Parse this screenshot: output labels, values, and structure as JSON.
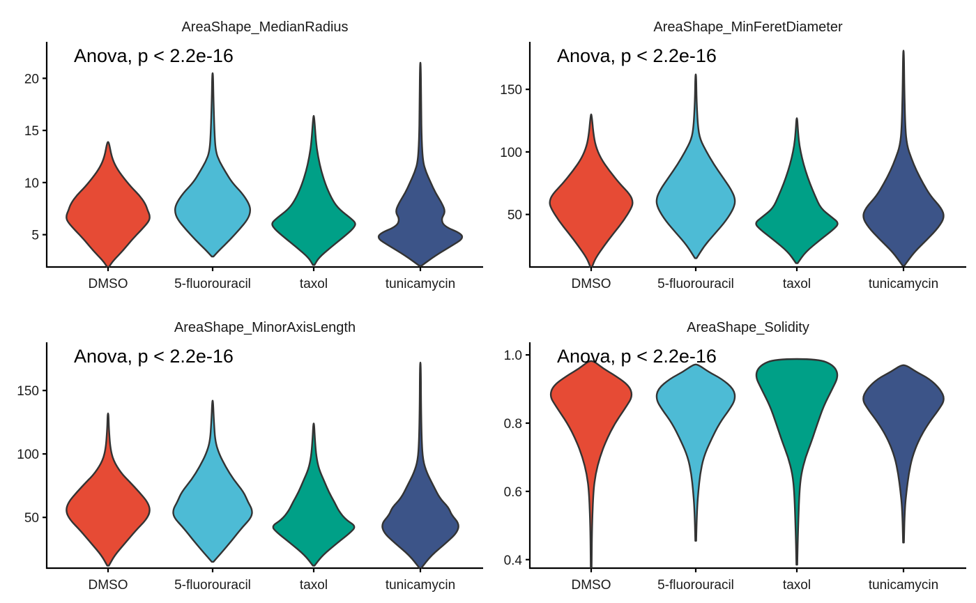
{
  "chart_data": [
    {
      "type": "violin",
      "title": "AreaShape_MedianRadius",
      "annotation": "Anova, p < 2.2e-16",
      "categories": [
        "DMSO",
        "5-fluorouracil",
        "taxol",
        "tunicamycin"
      ],
      "colors": [
        "#E64B35",
        "#4DBBD5",
        "#00A087",
        "#3C5488"
      ],
      "ylim": [
        1.9,
        23.5
      ],
      "yticks": [
        5,
        10,
        15,
        20
      ],
      "ytick_labels": [
        "5",
        "10",
        "15",
        "20"
      ],
      "series": [
        {
          "name": "DMSO",
          "min": 1.9,
          "max": 13.9,
          "profile": [
            [
              1.9,
              0.02
            ],
            [
              2.5,
              0.12
            ],
            [
              3.5,
              0.35
            ],
            [
              4.5,
              0.55
            ],
            [
              5.5,
              0.78
            ],
            [
              6.3,
              0.95
            ],
            [
              6.8,
              0.97
            ],
            [
              7.3,
              0.92
            ],
            [
              8,
              0.86
            ],
            [
              8.8,
              0.72
            ],
            [
              9.5,
              0.55
            ],
            [
              10.5,
              0.35
            ],
            [
              11.5,
              0.18
            ],
            [
              12.5,
              0.08
            ],
            [
              13.9,
              0.02
            ]
          ]
        },
        {
          "name": "5-fluorouracil",
          "min": 2.9,
          "max": 20.5,
          "profile": [
            [
              2.9,
              0.02
            ],
            [
              3.5,
              0.15
            ],
            [
              4.5,
              0.4
            ],
            [
              5.5,
              0.62
            ],
            [
              6.5,
              0.82
            ],
            [
              7.3,
              0.88
            ],
            [
              8,
              0.84
            ],
            [
              9,
              0.68
            ],
            [
              10,
              0.45
            ],
            [
              11,
              0.3
            ],
            [
              12,
              0.16
            ],
            [
              13,
              0.07
            ],
            [
              15,
              0.04
            ],
            [
              18,
              0.02
            ],
            [
              20.5,
              0.01
            ]
          ]
        },
        {
          "name": "taxol",
          "min": 2.1,
          "max": 16.4,
          "profile": [
            [
              2.1,
              0.02
            ],
            [
              2.8,
              0.12
            ],
            [
              3.8,
              0.4
            ],
            [
              4.8,
              0.7
            ],
            [
              5.6,
              0.92
            ],
            [
              6.1,
              0.98
            ],
            [
              6.6,
              0.85
            ],
            [
              7.4,
              0.6
            ],
            [
              8.2,
              0.45
            ],
            [
              9.5,
              0.3
            ],
            [
              11,
              0.18
            ],
            [
              12.5,
              0.1
            ],
            [
              14,
              0.05
            ],
            [
              16.4,
              0.01
            ]
          ]
        },
        {
          "name": "tunicamycin",
          "min": 2.0,
          "max": 21.5,
          "profile": [
            [
              2,
              0.02
            ],
            [
              3,
              0.35
            ],
            [
              4,
              0.75
            ],
            [
              4.6,
              0.98
            ],
            [
              5.1,
              0.95
            ],
            [
              5.8,
              0.55
            ],
            [
              6.5,
              0.48
            ],
            [
              7.2,
              0.58
            ],
            [
              8,
              0.5
            ],
            [
              9,
              0.35
            ],
            [
              10,
              0.24
            ],
            [
              11,
              0.13
            ],
            [
              12,
              0.06
            ],
            [
              14,
              0.03
            ],
            [
              17,
              0.02
            ],
            [
              21.5,
              0.01
            ]
          ]
        }
      ]
    },
    {
      "type": "violin",
      "title": "AreaShape_MinFeretDiameter",
      "annotation": "Anova, p < 2.2e-16",
      "categories": [
        "DMSO",
        "5-fluorouracil",
        "taxol",
        "tunicamycin"
      ],
      "colors": [
        "#E64B35",
        "#4DBBD5",
        "#00A087",
        "#3C5488"
      ],
      "ylim": [
        8,
        188
      ],
      "yticks": [
        50,
        100,
        150
      ],
      "ytick_labels": [
        "50",
        "100",
        "150"
      ],
      "series": [
        {
          "name": "DMSO",
          "min": 8,
          "max": 130,
          "profile": [
            [
              8,
              0.02
            ],
            [
              15,
              0.1
            ],
            [
              25,
              0.3
            ],
            [
              35,
              0.52
            ],
            [
              45,
              0.75
            ],
            [
              55,
              0.93
            ],
            [
              60,
              0.97
            ],
            [
              66,
              0.9
            ],
            [
              75,
              0.65
            ],
            [
              85,
              0.42
            ],
            [
              95,
              0.22
            ],
            [
              105,
              0.1
            ],
            [
              115,
              0.05
            ],
            [
              130,
              0.01
            ]
          ]
        },
        {
          "name": "5-fluorouracil",
          "min": 15,
          "max": 162,
          "profile": [
            [
              15,
              0.02
            ],
            [
              25,
              0.2
            ],
            [
              35,
              0.45
            ],
            [
              45,
              0.7
            ],
            [
              55,
              0.88
            ],
            [
              62,
              0.92
            ],
            [
              70,
              0.82
            ],
            [
              80,
              0.62
            ],
            [
              90,
              0.42
            ],
            [
              100,
              0.25
            ],
            [
              110,
              0.1
            ],
            [
              120,
              0.05
            ],
            [
              140,
              0.02
            ],
            [
              162,
              0.01
            ]
          ]
        },
        {
          "name": "taxol",
          "min": 11,
          "max": 127,
          "profile": [
            [
              11,
              0.02
            ],
            [
              20,
              0.2
            ],
            [
              30,
              0.55
            ],
            [
              38,
              0.85
            ],
            [
              43,
              0.98
            ],
            [
              48,
              0.8
            ],
            [
              55,
              0.55
            ],
            [
              65,
              0.42
            ],
            [
              75,
              0.3
            ],
            [
              85,
              0.2
            ],
            [
              95,
              0.12
            ],
            [
              105,
              0.06
            ],
            [
              115,
              0.03
            ],
            [
              127,
              0.01
            ]
          ]
        },
        {
          "name": "tunicamycin",
          "min": 9,
          "max": 181,
          "profile": [
            [
              9,
              0.02
            ],
            [
              20,
              0.25
            ],
            [
              30,
              0.55
            ],
            [
              40,
              0.82
            ],
            [
              48,
              0.95
            ],
            [
              55,
              0.88
            ],
            [
              65,
              0.62
            ],
            [
              75,
              0.45
            ],
            [
              85,
              0.3
            ],
            [
              95,
              0.18
            ],
            [
              105,
              0.08
            ],
            [
              120,
              0.04
            ],
            [
              150,
              0.02
            ],
            [
              181,
              0.01
            ]
          ]
        }
      ]
    },
    {
      "type": "violin",
      "title": "AreaShape_MinorAxisLength",
      "annotation": "Anova, p < 2.2e-16",
      "categories": [
        "DMSO",
        "5-fluorouracil",
        "taxol",
        "tunicamycin"
      ],
      "colors": [
        "#E64B35",
        "#4DBBD5",
        "#00A087",
        "#3C5488"
      ],
      "ylim": [
        10,
        188
      ],
      "yticks": [
        50,
        100,
        150
      ],
      "ytick_labels": [
        "50",
        "100",
        "150"
      ],
      "series": [
        {
          "name": "DMSO",
          "min": 12,
          "max": 132,
          "profile": [
            [
              12,
              0.02
            ],
            [
              20,
              0.15
            ],
            [
              30,
              0.4
            ],
            [
              40,
              0.65
            ],
            [
              48,
              0.88
            ],
            [
              55,
              0.98
            ],
            [
              62,
              0.92
            ],
            [
              70,
              0.72
            ],
            [
              78,
              0.5
            ],
            [
              85,
              0.3
            ],
            [
              95,
              0.12
            ],
            [
              105,
              0.05
            ],
            [
              120,
              0.02
            ],
            [
              132,
              0.01
            ]
          ]
        },
        {
          "name": "5-fluorouracil",
          "min": 15,
          "max": 142,
          "profile": [
            [
              15,
              0.02
            ],
            [
              22,
              0.2
            ],
            [
              32,
              0.45
            ],
            [
              42,
              0.68
            ],
            [
              50,
              0.9
            ],
            [
              56,
              0.92
            ],
            [
              62,
              0.82
            ],
            [
              70,
              0.72
            ],
            [
              80,
              0.48
            ],
            [
              90,
              0.3
            ],
            [
              100,
              0.15
            ],
            [
              110,
              0.06
            ],
            [
              125,
              0.03
            ],
            [
              142,
              0.01
            ]
          ]
        },
        {
          "name": "taxol",
          "min": 12,
          "max": 124,
          "profile": [
            [
              12,
              0.02
            ],
            [
              20,
              0.2
            ],
            [
              30,
              0.55
            ],
            [
              38,
              0.85
            ],
            [
              43,
              0.98
            ],
            [
              48,
              0.75
            ],
            [
              55,
              0.58
            ],
            [
              62,
              0.48
            ],
            [
              70,
              0.35
            ],
            [
              78,
              0.25
            ],
            [
              88,
              0.12
            ],
            [
              98,
              0.06
            ],
            [
              110,
              0.03
            ],
            [
              124,
              0.01
            ]
          ]
        },
        {
          "name": "tunicamycin",
          "min": 10,
          "max": 172,
          "profile": [
            [
              10,
              0.02
            ],
            [
              20,
              0.25
            ],
            [
              30,
              0.6
            ],
            [
              38,
              0.85
            ],
            [
              45,
              0.9
            ],
            [
              52,
              0.72
            ],
            [
              58,
              0.65
            ],
            [
              65,
              0.45
            ],
            [
              75,
              0.3
            ],
            [
              85,
              0.15
            ],
            [
              95,
              0.06
            ],
            [
              110,
              0.03
            ],
            [
              140,
              0.015
            ],
            [
              172,
              0.01
            ]
          ]
        }
      ]
    },
    {
      "type": "violin",
      "title": "AreaShape_Solidity",
      "annotation": "Anova, p < 2.2e-16",
      "categories": [
        "DMSO",
        "5-fluorouracil",
        "taxol",
        "tunicamycin"
      ],
      "colors": [
        "#E64B35",
        "#4DBBD5",
        "#00A087",
        "#3C5488"
      ],
      "ylim": [
        0.375,
        1.037
      ],
      "yticks": [
        0.4,
        0.6,
        0.8,
        1.0
      ],
      "ytick_labels": [
        "0.4",
        "0.6",
        "0.8",
        "1.0"
      ],
      "series": [
        {
          "name": "DMSO",
          "min": 0.375,
          "max": 0.982,
          "profile": [
            [
              0.375,
              0.01
            ],
            [
              0.5,
              0.02
            ],
            [
              0.6,
              0.05
            ],
            [
              0.65,
              0.1
            ],
            [
              0.7,
              0.2
            ],
            [
              0.75,
              0.35
            ],
            [
              0.8,
              0.55
            ],
            [
              0.85,
              0.82
            ],
            [
              0.88,
              0.96
            ],
            [
              0.91,
              0.88
            ],
            [
              0.94,
              0.55
            ],
            [
              0.96,
              0.28
            ],
            [
              0.982,
              0.06
            ]
          ]
        },
        {
          "name": "5-fluorouracil",
          "min": 0.455,
          "max": 0.972,
          "profile": [
            [
              0.455,
              0.01
            ],
            [
              0.55,
              0.03
            ],
            [
              0.6,
              0.06
            ],
            [
              0.65,
              0.1
            ],
            [
              0.7,
              0.18
            ],
            [
              0.75,
              0.35
            ],
            [
              0.8,
              0.55
            ],
            [
              0.84,
              0.78
            ],
            [
              0.87,
              0.92
            ],
            [
              0.9,
              0.88
            ],
            [
              0.93,
              0.6
            ],
            [
              0.95,
              0.3
            ],
            [
              0.972,
              0.05
            ]
          ]
        },
        {
          "name": "taxol",
          "min": 0.385,
          "max": 0.988,
          "profile": [
            [
              0.385,
              0.01
            ],
            [
              0.5,
              0.03
            ],
            [
              0.6,
              0.06
            ],
            [
              0.65,
              0.1
            ],
            [
              0.7,
              0.2
            ],
            [
              0.75,
              0.35
            ],
            [
              0.8,
              0.48
            ],
            [
              0.85,
              0.62
            ],
            [
              0.9,
              0.82
            ],
            [
              0.94,
              0.97
            ],
            [
              0.97,
              0.85
            ],
            [
              0.988,
              0.5
            ]
          ]
        },
        {
          "name": "tunicamycin",
          "min": 0.45,
          "max": 0.97,
          "profile": [
            [
              0.45,
              0.01
            ],
            [
              0.55,
              0.03
            ],
            [
              0.6,
              0.07
            ],
            [
              0.65,
              0.12
            ],
            [
              0.7,
              0.2
            ],
            [
              0.75,
              0.35
            ],
            [
              0.8,
              0.58
            ],
            [
              0.84,
              0.82
            ],
            [
              0.87,
              0.96
            ],
            [
              0.9,
              0.85
            ],
            [
              0.93,
              0.6
            ],
            [
              0.95,
              0.3
            ],
            [
              0.97,
              0.06
            ]
          ]
        }
      ]
    }
  ]
}
